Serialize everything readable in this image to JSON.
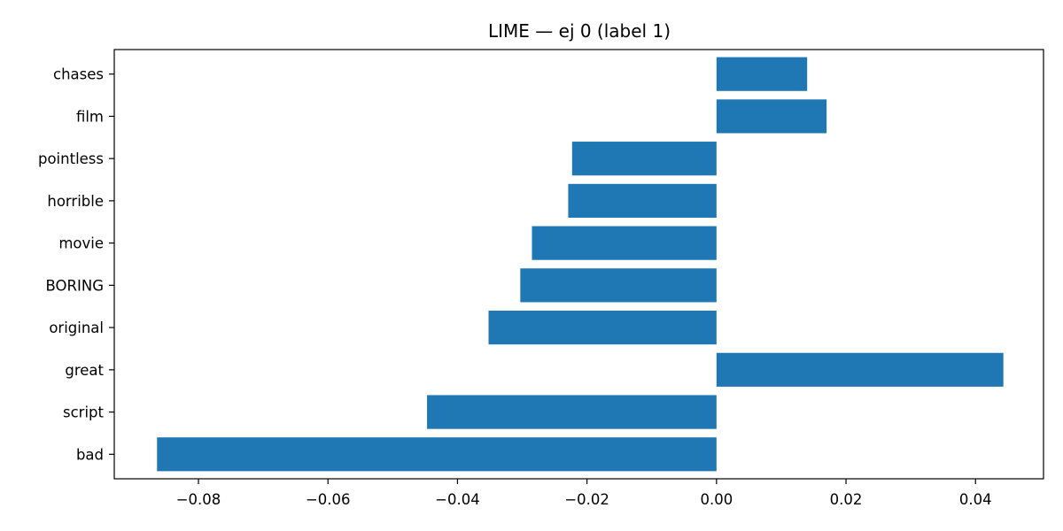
{
  "chart_data": {
    "type": "bar",
    "orientation": "horizontal",
    "title": "LIME — ej 0 (label 1)",
    "xlabel": "",
    "ylabel": "",
    "categories": [
      "chases",
      "film",
      "pointless",
      "horrible",
      "movie",
      "BORING",
      "original",
      "great",
      "script",
      "bad"
    ],
    "values": [
      0.014,
      0.017,
      -0.0223,
      -0.0229,
      -0.0285,
      -0.0303,
      -0.0352,
      0.0443,
      -0.0447,
      -0.0864
    ],
    "xlim": [
      -0.093,
      0.0505
    ],
    "xticks": [
      -0.08,
      -0.06,
      -0.04,
      -0.02,
      0.0,
      0.02,
      0.04
    ],
    "xtick_labels": [
      "−0.08",
      "−0.06",
      "−0.04",
      "−0.02",
      "0.00",
      "0.02",
      "0.04"
    ],
    "bar_color": "#1f77b4",
    "grid": false,
    "legend": "none"
  }
}
